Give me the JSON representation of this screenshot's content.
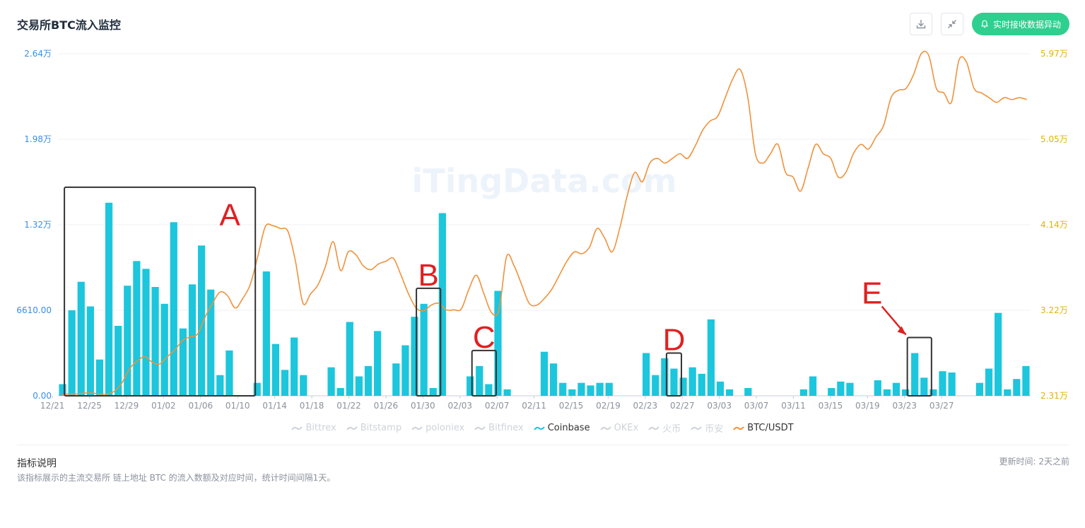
{
  "header": {
    "title": "交易所BTC流入监控",
    "alert_label": "实时接收数据异动",
    "download_icon": "download-icon",
    "collapse_icon": "collapse-icon",
    "bell_icon": "bell-icon"
  },
  "watermark": "iTingData.com",
  "legend": [
    {
      "name": "Bittrex",
      "active": false
    },
    {
      "name": "Bitstamp",
      "active": false
    },
    {
      "name": "poloniex",
      "active": false
    },
    {
      "name": "Bitfinex",
      "active": false
    },
    {
      "name": "Coinbase",
      "active": true
    },
    {
      "name": "OKEx",
      "active": false
    },
    {
      "name": "火币",
      "active": false
    },
    {
      "name": "币安",
      "active": false
    },
    {
      "name": "BTC/USDT",
      "active": true
    }
  ],
  "footer": {
    "info_title": "指标说明",
    "info_text": "该指标展示的主流交易所 链上地址 BTC 的流入数额及对应时间，统计时间间隔1天。",
    "update_text": "更新时间: 2天之前"
  },
  "annotations": [
    {
      "label": "A",
      "from": "12/22",
      "to": "01/10"
    },
    {
      "label": "B",
      "from": "01/29",
      "to": "01/30"
    },
    {
      "label": "C",
      "from": "02/04",
      "to": "02/05"
    },
    {
      "label": "D",
      "from": "02/25",
      "to": "02/25"
    },
    {
      "label": "E",
      "from": "03/23",
      "to": "03/24"
    }
  ],
  "colors": {
    "bar": "#1cc6dc",
    "line": "#f0923b",
    "left_axis": "#3a8ee6",
    "right_axis": "#e0b400",
    "annotation_box": "#333333",
    "annotation_text": "#e02020",
    "alert_button": "#2fcf8f"
  },
  "chart_data": {
    "type": "bar",
    "x_tick_labels": [
      "12/21",
      "12/25",
      "12/29",
      "01/02",
      "01/06",
      "01/10",
      "01/14",
      "01/18",
      "01/22",
      "01/26",
      "01/30",
      "02/03",
      "02/07",
      "02/11",
      "02/15",
      "02/19",
      "02/23",
      "02/27",
      "03/03",
      "03/07",
      "03/11",
      "03/15",
      "03/19",
      "03/23",
      "03/27"
    ],
    "y_left": {
      "ticks": [
        "0.00",
        "6610.00",
        "1.32万",
        "1.98万",
        "2.64万"
      ],
      "ylim": [
        0,
        26400
      ]
    },
    "y_right": {
      "ticks": [
        "2.31万",
        "3.22万",
        "4.14万",
        "5.05万",
        "5.97万"
      ],
      "ylim": [
        23100,
        59700
      ]
    },
    "series": [
      {
        "name": "Coinbase",
        "type": "bar",
        "values": [
          900,
          6600,
          8800,
          6900,
          2800,
          14900,
          5400,
          8500,
          10400,
          9800,
          8400,
          7100,
          13400,
          5200,
          8600,
          11600,
          8200,
          1600,
          3500,
          0,
          0,
          1000,
          9600,
          4000,
          2000,
          4500,
          1600,
          0,
          0,
          2200,
          600,
          5700,
          1500,
          2300,
          5000,
          0,
          2500,
          3900,
          6100,
          7100,
          600,
          14100,
          0,
          0,
          1500,
          2300,
          900,
          8100,
          500,
          0,
          0,
          0,
          3400,
          2500,
          1000,
          500,
          1000,
          800,
          1000,
          1000,
          0,
          0,
          0,
          3300,
          1600,
          2900,
          2100,
          1400,
          2200,
          1700,
          5900,
          1100,
          500,
          0,
          600,
          0,
          0,
          0,
          0,
          0,
          500,
          1500,
          0,
          600,
          1100,
          1000,
          0,
          0,
          1200,
          500,
          1000,
          500,
          3300,
          1400,
          500,
          1900,
          1800,
          0,
          0,
          1000,
          2100,
          6400,
          500,
          1300,
          2300
        ]
      },
      {
        "name": "BTC/USDT",
        "type": "line",
        "values": [
          23200,
          23300,
          23300,
          23400,
          23400,
          23300,
          23300,
          23600,
          24500,
          26000,
          26800,
          27300,
          26700,
          26500,
          27300,
          28000,
          29000,
          29400,
          29700,
          31500,
          33000,
          34200,
          33800,
          32500,
          33500,
          35000,
          38000,
          41200,
          41300,
          41000,
          40700,
          37500,
          33000,
          34000,
          35000,
          37000,
          39600,
          36500,
          38500,
          38200,
          37000,
          36600,
          37200,
          37500,
          37800,
          36000,
          34000,
          32500,
          32200,
          32800,
          33000,
          32300,
          32300,
          32400,
          34500,
          36000,
          34000,
          32000,
          32300,
          38000,
          37000,
          35000,
          33000,
          32800,
          33500,
          34500,
          36000,
          37500,
          38500,
          38300,
          39000,
          41000,
          40000,
          38500,
          41000,
          44500,
          47000,
          46000,
          48000,
          48500,
          48000,
          48500,
          49000,
          48500,
          49800,
          51500,
          52500,
          53000,
          55000,
          57000,
          58000,
          55000,
          49000,
          48000,
          49000,
          50000,
          47000,
          46500,
          45000,
          47500,
          50000,
          49000,
          48500,
          46500,
          47000,
          49000,
          50000,
          49500,
          50800,
          52000,
          55000,
          55800,
          56000,
          57500,
          59700,
          59500,
          56000,
          55500,
          54500,
          59000,
          58800,
          56000,
          55500,
          55000,
          54500,
          55000,
          54800,
          55000,
          54800
        ]
      }
    ]
  }
}
